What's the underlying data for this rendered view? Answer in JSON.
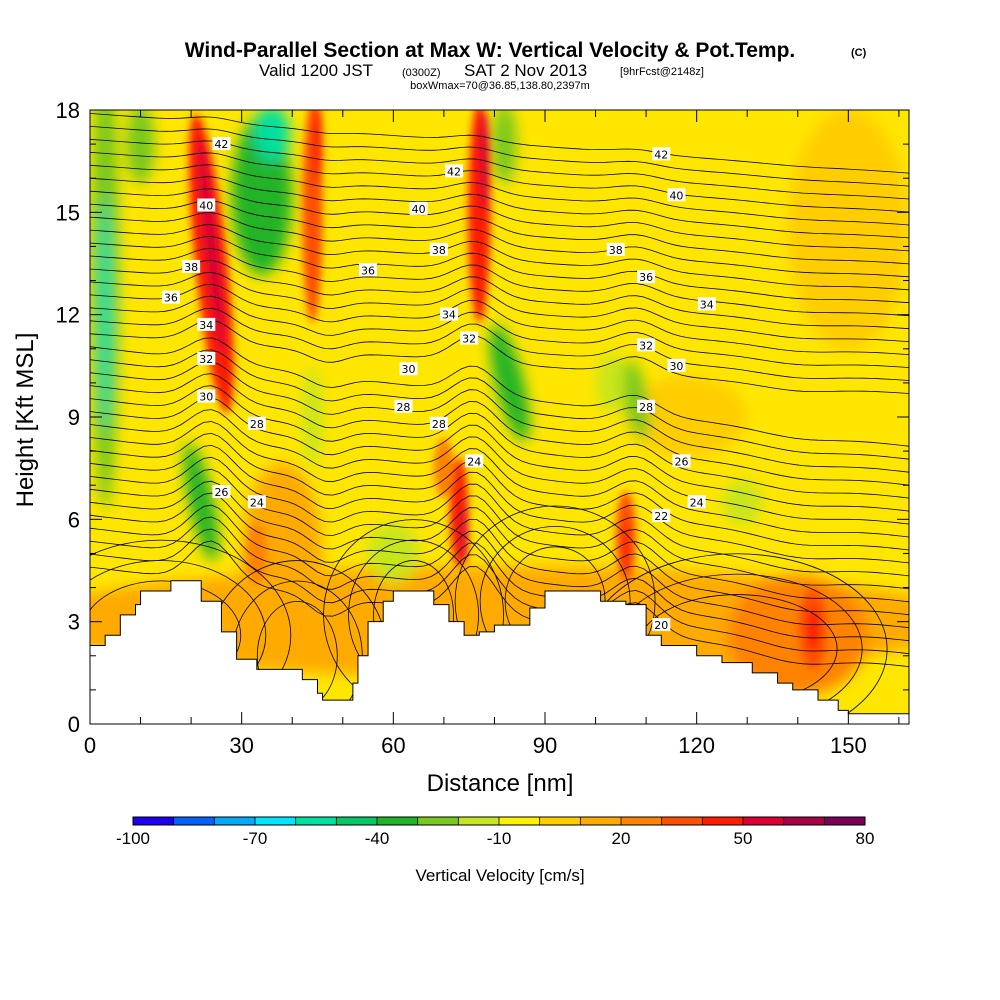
{
  "title": {
    "main": "Wind-Parallel Section at Max W: Vertical Velocity & Pot.Temp.",
    "main_tag": "(C)",
    "sub_a": "Valid 1200 JST",
    "sub_b": "(0300Z)",
    "sub_c": "SAT 2 Nov 2013",
    "sub_d": "[9hrFcst@2148z]",
    "box": "boxWmax=70@36.85,138.80,2397m"
  },
  "chart_data": {
    "type": "heatmap",
    "xlabel": "Distance [nm]",
    "ylabel": "Height [Kft MSL]",
    "xlim": [
      0,
      162
    ],
    "ylim": [
      0,
      18
    ],
    "x_ticks": [
      0,
      30,
      60,
      90,
      120,
      150
    ],
    "y_ticks": [
      0,
      3,
      6,
      9,
      12,
      15,
      18
    ],
    "colorbar": {
      "label": "Vertical Velocity [cm/s]",
      "tick_labels": [
        "-100",
        "-70",
        "-40",
        "-10",
        "20",
        "50",
        "80"
      ],
      "min": -100,
      "max": 80,
      "step": 10,
      "colors": [
        "#1e00f0",
        "#0064ff",
        "#00aaff",
        "#00e6ff",
        "#00e0a0",
        "#00c864",
        "#20b428",
        "#78c81e",
        "#c8e61e",
        "#fff000",
        "#ffcd00",
        "#ffaa00",
        "#ff8200",
        "#ff5000",
        "#ff1e00",
        "#dc0032",
        "#aa0046",
        "#7a005a"
      ]
    },
    "terrain_kft": [
      [
        0,
        2.3
      ],
      [
        3,
        2.6
      ],
      [
        6,
        3.2
      ],
      [
        9,
        3.5
      ],
      [
        10,
        3.9
      ],
      [
        16,
        4.2
      ],
      [
        22,
        3.6
      ],
      [
        26,
        2.7
      ],
      [
        29,
        1.9
      ],
      [
        33,
        1.6
      ],
      [
        40,
        1.6
      ],
      [
        42,
        1.3
      ],
      [
        45,
        0.9
      ],
      [
        46,
        0.7
      ],
      [
        51,
        0.7
      ],
      [
        52,
        1.2
      ],
      [
        53,
        2.0
      ],
      [
        55,
        3.0
      ],
      [
        58,
        3.6
      ],
      [
        60,
        3.9
      ],
      [
        66,
        3.9
      ],
      [
        68,
        3.5
      ],
      [
        71,
        3.0
      ],
      [
        74,
        2.6
      ],
      [
        77,
        2.7
      ],
      [
        80,
        2.9
      ],
      [
        87,
        3.4
      ],
      [
        90,
        3.9
      ],
      [
        96,
        3.9
      ],
      [
        101,
        3.6
      ],
      [
        106,
        3.5
      ],
      [
        110,
        2.6
      ],
      [
        113,
        2.3
      ],
      [
        120,
        2.0
      ],
      [
        125,
        1.8
      ],
      [
        131,
        1.5
      ],
      [
        136,
        1.2
      ],
      [
        139,
        1.0
      ],
      [
        144,
        0.7
      ],
      [
        148,
        0.4
      ],
      [
        150,
        0.3
      ],
      [
        162,
        0.3
      ]
    ],
    "contour_labels": [
      {
        "value": "42",
        "x": 26,
        "y": 17.0
      },
      {
        "value": "40",
        "x": 23,
        "y": 15.2
      },
      {
        "value": "38",
        "x": 20,
        "y": 13.4
      },
      {
        "value": "36",
        "x": 16,
        "y": 12.5
      },
      {
        "value": "34",
        "x": 23,
        "y": 11.7
      },
      {
        "value": "32",
        "x": 23,
        "y": 10.7
      },
      {
        "value": "30",
        "x": 23,
        "y": 9.6
      },
      {
        "value": "28",
        "x": 33,
        "y": 8.8
      },
      {
        "value": "26",
        "x": 26,
        "y": 6.8
      },
      {
        "value": "24",
        "x": 33,
        "y": 6.5
      },
      {
        "value": "42",
        "x": 72,
        "y": 16.2
      },
      {
        "value": "40",
        "x": 65,
        "y": 15.1
      },
      {
        "value": "38",
        "x": 69,
        "y": 13.9
      },
      {
        "value": "36",
        "x": 55,
        "y": 13.3
      },
      {
        "value": "34",
        "x": 71,
        "y": 12.0
      },
      {
        "value": "32",
        "x": 75,
        "y": 11.3
      },
      {
        "value": "30",
        "x": 63,
        "y": 10.4
      },
      {
        "value": "28",
        "x": 62,
        "y": 9.3
      },
      {
        "value": "28",
        "x": 69,
        "y": 8.8
      },
      {
        "value": "24",
        "x": 76,
        "y": 7.7
      },
      {
        "value": "42",
        "x": 113,
        "y": 16.7
      },
      {
        "value": "40",
        "x": 116,
        "y": 15.5
      },
      {
        "value": "38",
        "x": 104,
        "y": 13.9
      },
      {
        "value": "36",
        "x": 110,
        "y": 13.1
      },
      {
        "value": "34",
        "x": 122,
        "y": 12.3
      },
      {
        "value": "32",
        "x": 110,
        "y": 11.1
      },
      {
        "value": "30",
        "x": 116,
        "y": 10.5
      },
      {
        "value": "28",
        "x": 110,
        "y": 9.3
      },
      {
        "value": "26",
        "x": 117,
        "y": 7.7
      },
      {
        "value": "24",
        "x": 120,
        "y": 6.5
      },
      {
        "value": "22",
        "x": 113,
        "y": 6.1
      },
      {
        "value": "20",
        "x": 113,
        "y": 2.9
      }
    ]
  }
}
